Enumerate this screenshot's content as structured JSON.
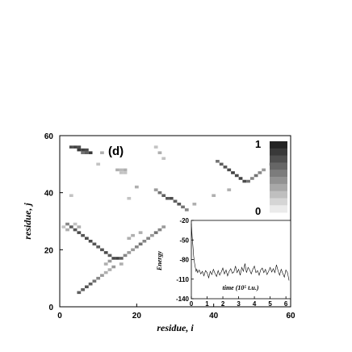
{
  "chart_data": [
    {
      "type": "heatmap",
      "title": "",
      "panel_label": "(d)",
      "xlabel": "residue, i",
      "ylabel": "residue, j",
      "xlim": [
        0,
        60
      ],
      "ylim": [
        0,
        60
      ],
      "xticks": [
        "0",
        "20",
        "40",
        "60"
      ],
      "yticks": [
        "0",
        "20",
        "40",
        "60"
      ],
      "colorbar": {
        "min_label": "0",
        "max_label": "1",
        "levels": 10
      },
      "cells": [
        [
          3,
          56,
          0.8
        ],
        [
          4,
          56,
          0.85
        ],
        [
          5,
          56,
          0.8
        ],
        [
          5,
          55,
          0.9
        ],
        [
          6,
          55,
          0.85
        ],
        [
          7,
          55,
          0.8
        ],
        [
          6,
          54,
          0.6
        ],
        [
          7,
          54,
          0.7
        ],
        [
          8,
          54,
          0.9
        ],
        [
          11,
          54,
          0.3
        ],
        [
          10,
          50,
          0.2
        ],
        [
          15,
          48,
          0.3
        ],
        [
          16,
          48,
          0.25
        ],
        [
          17,
          48,
          0.3
        ],
        [
          16,
          47,
          0.2
        ],
        [
          17,
          47,
          0.2
        ],
        [
          25,
          56,
          0.2
        ],
        [
          26,
          54,
          0.3
        ],
        [
          27,
          52,
          0.2
        ],
        [
          41,
          51,
          0.6
        ],
        [
          42,
          50,
          0.7
        ],
        [
          43,
          49,
          0.75
        ],
        [
          44,
          48,
          0.8
        ],
        [
          45,
          47,
          0.85
        ],
        [
          46,
          46,
          0.8
        ],
        [
          47,
          45,
          0.85
        ],
        [
          48,
          44,
          0.8
        ],
        [
          49,
          44,
          0.6
        ],
        [
          50,
          45,
          0.5
        ],
        [
          51,
          46,
          0.6
        ],
        [
          52,
          47,
          0.5
        ],
        [
          53,
          48,
          0.4
        ],
        [
          55,
          50,
          0.8
        ],
        [
          56,
          51,
          0.7
        ],
        [
          25,
          41,
          0.4
        ],
        [
          26,
          40,
          0.6
        ],
        [
          27,
          39,
          0.7
        ],
        [
          28,
          38,
          0.75
        ],
        [
          29,
          38,
          0.8
        ],
        [
          30,
          37,
          0.7
        ],
        [
          31,
          36,
          0.75
        ],
        [
          32,
          35,
          0.6
        ],
        [
          33,
          34,
          0.5
        ],
        [
          35,
          36,
          0.3
        ],
        [
          40,
          39,
          0.3
        ],
        [
          44,
          41,
          0.3
        ],
        [
          20,
          42,
          0.3
        ],
        [
          3,
          39,
          0.2
        ],
        [
          18,
          38,
          0.2
        ],
        [
          2,
          29,
          0.5
        ],
        [
          3,
          28,
          0.7
        ],
        [
          4,
          27,
          0.75
        ],
        [
          5,
          26,
          0.8
        ],
        [
          6,
          25,
          0.75
        ],
        [
          7,
          24,
          0.8
        ],
        [
          8,
          23,
          0.8
        ],
        [
          9,
          22,
          0.75
        ],
        [
          10,
          21,
          0.7
        ],
        [
          11,
          20,
          0.75
        ],
        [
          12,
          19,
          0.8
        ],
        [
          13,
          18,
          0.7
        ],
        [
          14,
          17,
          0.8
        ],
        [
          15,
          17,
          0.85
        ],
        [
          16,
          17,
          0.7
        ],
        [
          17,
          18,
          0.5
        ],
        [
          18,
          19,
          0.4
        ],
        [
          19,
          20,
          0.4
        ],
        [
          20,
          21,
          0.5
        ],
        [
          21,
          22,
          0.6
        ],
        [
          22,
          23,
          0.5
        ],
        [
          23,
          24,
          0.5
        ],
        [
          24,
          25,
          0.4
        ],
        [
          25,
          26,
          0.6
        ],
        [
          26,
          27,
          0.5
        ],
        [
          27,
          28,
          0.4
        ],
        [
          1,
          28,
          0.2
        ],
        [
          2,
          27,
          0.3
        ],
        [
          4,
          29,
          0.2
        ],
        [
          5,
          28,
          0.3
        ],
        [
          13,
          16,
          0.4
        ],
        [
          12,
          15,
          0.3
        ],
        [
          18,
          24,
          0.3
        ],
        [
          19,
          25,
          0.3
        ],
        [
          21,
          26,
          0.3
        ],
        [
          5,
          5,
          0.7
        ],
        [
          6,
          6,
          0.7
        ],
        [
          7,
          7,
          0.75
        ],
        [
          8,
          8,
          0.7
        ],
        [
          9,
          9,
          0.6
        ],
        [
          10,
          10,
          0.5
        ],
        [
          11,
          11,
          0.4
        ],
        [
          12,
          12,
          0.3
        ],
        [
          13,
          13,
          0.3
        ],
        [
          14,
          14,
          0.4
        ],
        [
          16,
          15,
          0.3
        ]
      ]
    },
    {
      "type": "line",
      "title": "",
      "xlabel": "time (10⁵ t.u.)",
      "ylabel": "Energy",
      "xlim": [
        0,
        6.3
      ],
      "ylim": [
        -140,
        -20
      ],
      "xticks": [
        "0",
        "1",
        "2",
        "3",
        "4",
        "5",
        "6"
      ],
      "yticks": [
        "-20",
        "-50",
        "-80",
        "-110",
        "-140"
      ],
      "series": [
        {
          "x": [
            0,
            0.05,
            0.1,
            0.15,
            0.2,
            0.25,
            0.3,
            0.35,
            0.4,
            0.5,
            0.6,
            0.7,
            0.8,
            0.9,
            1.0,
            1.1,
            1.2,
            1.3,
            1.4,
            1.5,
            1.6,
            1.7,
            1.8,
            1.9,
            2.0,
            2.1,
            2.2,
            2.3,
            2.4,
            2.5,
            2.6,
            2.7,
            2.8,
            2.9,
            3.0,
            3.1,
            3.2,
            3.3,
            3.4,
            3.5,
            3.6,
            3.7,
            3.8,
            3.9,
            4.0,
            4.1,
            4.2,
            4.3,
            4.4,
            4.5,
            4.6,
            4.7,
            4.8,
            4.9,
            5.0,
            5.1,
            5.2,
            5.3,
            5.4,
            5.5,
            5.6,
            5.7,
            5.8,
            5.9,
            6.0,
            6.1,
            6.2
          ],
          "y": [
            -25,
            -45,
            -60,
            -75,
            -85,
            -92,
            -98,
            -95,
            -100,
            -96,
            -102,
            -98,
            -105,
            -97,
            -100,
            -108,
            -98,
            -103,
            -95,
            -101,
            -106,
            -97,
            -104,
            -99,
            -93,
            -102,
            -96,
            -105,
            -98,
            -94,
            -101,
            -99,
            -90,
            -100,
            -95,
            -104,
            -92,
            -98,
            -86,
            -100,
            -92,
            -96,
            -102,
            -95,
            -90,
            -100,
            -97,
            -104,
            -96,
            -93,
            -100,
            -95,
            -103,
            -98,
            -92,
            -99,
            -94,
            -100,
            -88,
            -97,
            -104,
            -95,
            -101,
            -107,
            -96,
            -100,
            -112
          ]
        }
      ]
    }
  ]
}
